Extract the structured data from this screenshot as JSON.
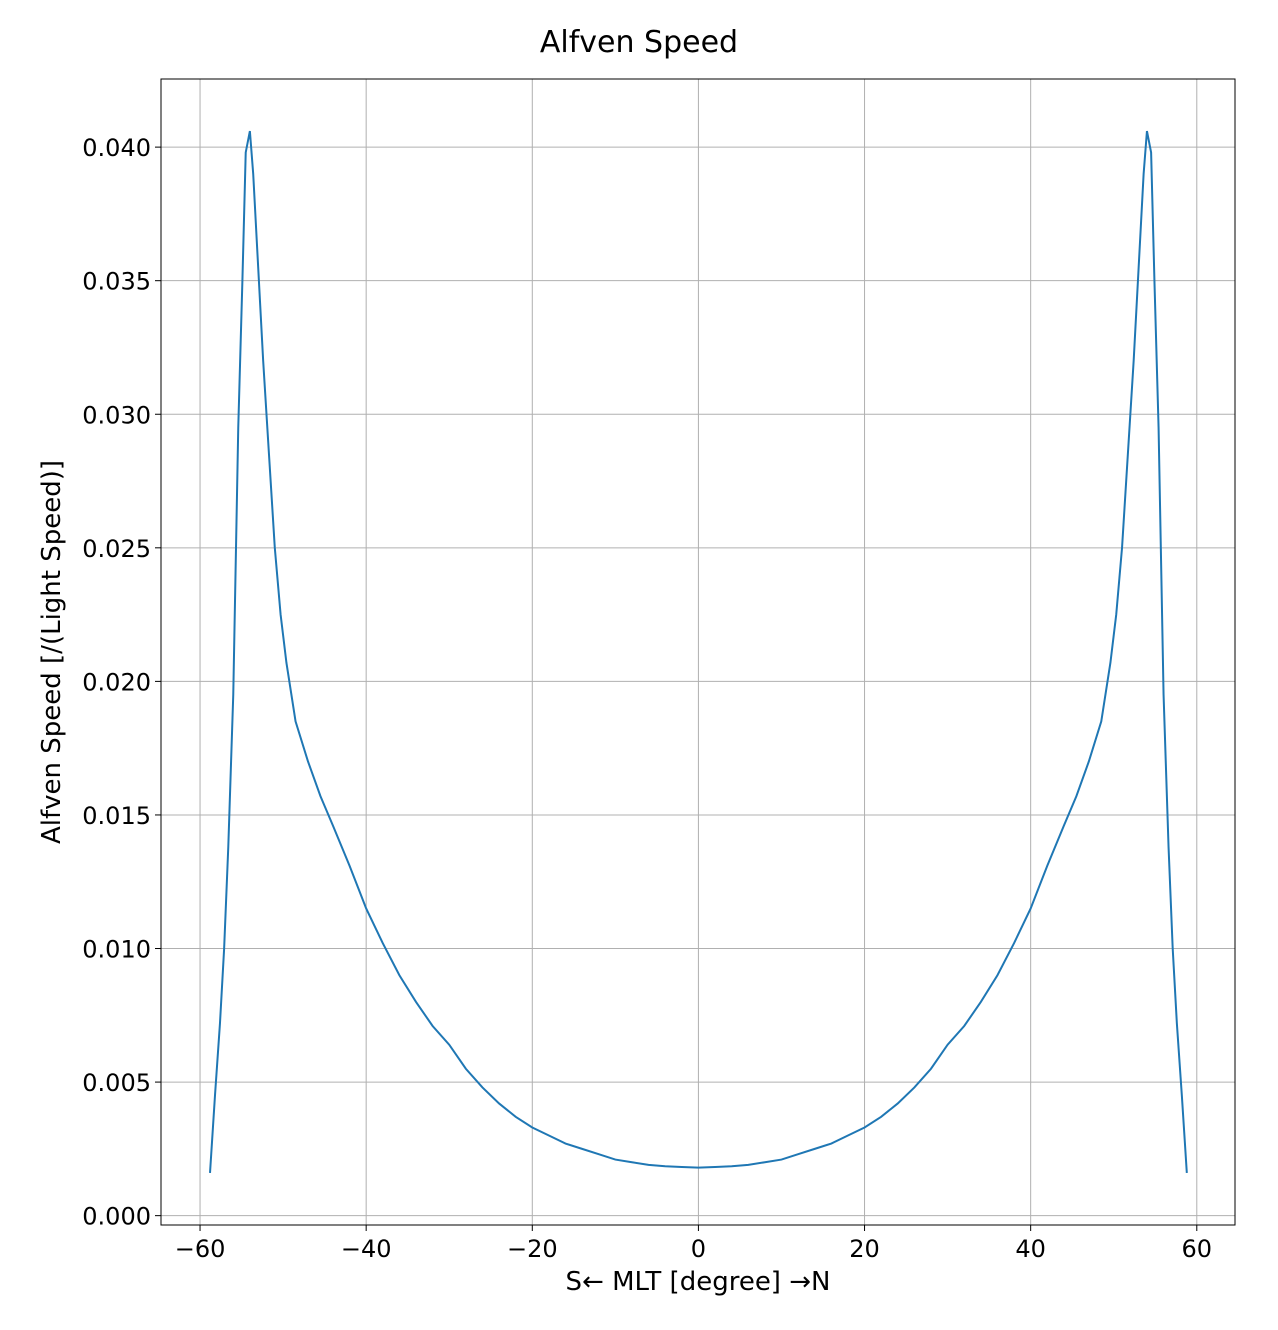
{
  "chart_data": {
    "type": "line",
    "title": "Alfven Speed",
    "xlabel": "S← MLT [degree] →N",
    "ylabel": "Alfven Speed [/(Light Speed)]",
    "x": [
      -58.8,
      -58.2,
      -57.6,
      -57.1,
      -56.6,
      -56.0,
      -55.4,
      -54.9,
      -54.5,
      -54.0,
      -53.6,
      -53.0,
      -52.4,
      -51.7,
      -51.0,
      -50.3,
      -49.6,
      -48.5,
      -47.0,
      -45.5,
      -44,
      -42,
      -40,
      -38,
      -36,
      -34,
      -32,
      -30,
      -28,
      -26,
      -24,
      -22,
      -20,
      -18,
      -16,
      -14,
      -12,
      -10,
      -8,
      -6,
      -4,
      -2,
      0,
      2,
      4,
      6,
      8,
      10,
      12,
      14,
      16,
      18,
      20,
      22,
      24,
      26,
      28,
      30,
      32,
      34,
      36,
      38,
      40,
      42,
      44,
      45.5,
      47.0,
      48.5,
      49.6,
      50.3,
      51.0,
      51.7,
      52.4,
      53.0,
      53.6,
      54.0,
      54.5,
      54.9,
      55.4,
      56.0,
      56.6,
      57.1,
      57.6,
      58.2,
      58.8
    ],
    "values": [
      0.0016,
      0.0045,
      0.0072,
      0.01,
      0.0138,
      0.0195,
      0.0295,
      0.035,
      0.0398,
      0.0406,
      0.039,
      0.0355,
      0.032,
      0.0285,
      0.025,
      0.0225,
      0.0207,
      0.0185,
      0.017,
      0.0157,
      0.0146,
      0.0131,
      0.0115,
      0.0102,
      0.009,
      0.008,
      0.0071,
      0.0064,
      0.0055,
      0.0048,
      0.0042,
      0.0037,
      0.0033,
      0.003,
      0.0027,
      0.0025,
      0.0023,
      0.0021,
      0.002,
      0.0019,
      0.00185,
      0.00182,
      0.0018,
      0.00182,
      0.00185,
      0.0019,
      0.002,
      0.0021,
      0.0023,
      0.0025,
      0.0027,
      0.003,
      0.0033,
      0.0037,
      0.0042,
      0.0048,
      0.0055,
      0.0064,
      0.0071,
      0.008,
      0.009,
      0.0102,
      0.0115,
      0.0131,
      0.0146,
      0.0157,
      0.017,
      0.0185,
      0.0207,
      0.0225,
      0.025,
      0.0285,
      0.032,
      0.0355,
      0.039,
      0.0406,
      0.0398,
      0.035,
      0.0295,
      0.0195,
      0.0138,
      0.01,
      0.0072,
      0.0045,
      0.0016
    ],
    "color": "#1f77b4",
    "xlim": [
      -64.7,
      64.6
    ],
    "xticks": [
      {
        "value": -60,
        "label": "−60"
      },
      {
        "value": -40,
        "label": "−40"
      },
      {
        "value": -20,
        "label": "−20"
      },
      0,
      20,
      40,
      60
    ],
    "ylim": [
      -0.00035,
      0.04255
    ],
    "yticks": [
      {
        "value": 0,
        "label": "0.000"
      },
      {
        "value": 0.005,
        "label": "0.005"
      },
      {
        "value": 0.01,
        "label": "0.010"
      },
      {
        "value": 0.015,
        "label": "0.015"
      },
      {
        "value": 0.02,
        "label": "0.020"
      },
      {
        "value": 0.025,
        "label": "0.025"
      },
      {
        "value": 0.03,
        "label": "0.030"
      },
      {
        "value": 0.035,
        "label": "0.035"
      },
      {
        "value": 0.04,
        "label": "0.040"
      }
    ],
    "grid": true
  }
}
